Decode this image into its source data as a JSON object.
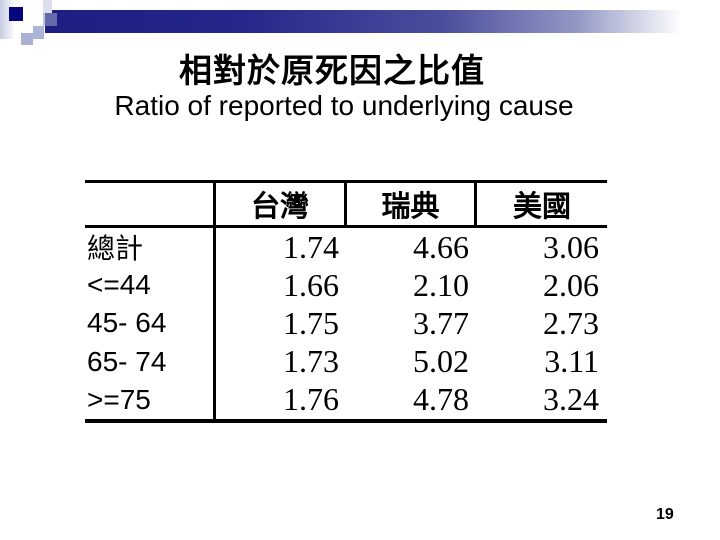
{
  "slide": {
    "title": "相對於原死因之比值",
    "subtitle": "Ratio of reported to underlying cause"
  },
  "table": {
    "headers": [
      "",
      "台灣",
      "瑞典",
      "美國"
    ],
    "rows": [
      {
        "label": "總計",
        "values": [
          "1.74",
          "4.66",
          "3.06"
        ]
      },
      {
        "label": "<=44",
        "values": [
          "1.66",
          "2.10",
          "2.06"
        ]
      },
      {
        "label": "45- 64",
        "values": [
          "1.75",
          "3.77",
          "2.73"
        ]
      },
      {
        "label": "65- 74",
        "values": [
          "1.73",
          "5.02",
          "3.11"
        ]
      },
      {
        "label": ">=75",
        "values": [
          "1.76",
          "4.78",
          "3.24"
        ]
      }
    ]
  },
  "footer": {
    "page_number": "19"
  },
  "colors": {
    "accent_navy": "#1d1e81",
    "decor_navy_square": "#06067f",
    "text": "#000000",
    "background": "#ffffff"
  }
}
